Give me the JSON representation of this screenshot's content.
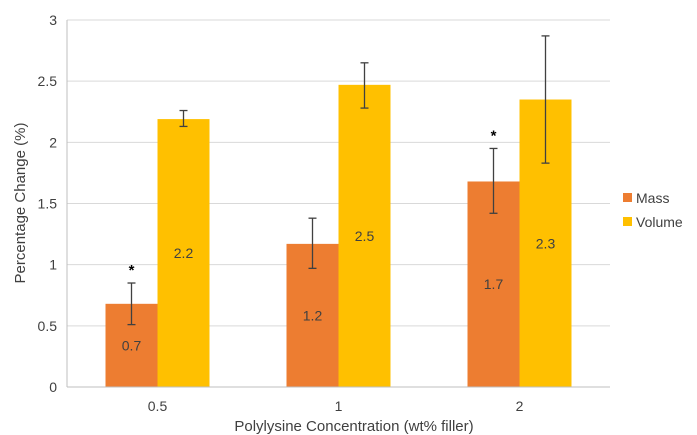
{
  "chart_data": {
    "type": "bar",
    "title": "",
    "xlabel": "Polylysine Concentration (wt% filler)",
    "ylabel": "Percentage Change  (%)",
    "categories": [
      "0.5",
      "1",
      "2"
    ],
    "ylim": [
      0,
      3
    ],
    "yticks": [
      "0",
      "0.5",
      "1",
      "1.5",
      "2",
      "2.5",
      "3"
    ],
    "grid": true,
    "legend_position": "right",
    "series": [
      {
        "name": "Mass",
        "color": "#ed7d31",
        "values": [
          0.68,
          1.17,
          1.68
        ],
        "labels": [
          "0.7",
          "1.2",
          "1.7"
        ],
        "error_low": [
          0.51,
          0.97,
          1.42
        ],
        "error_high": [
          0.85,
          1.38,
          1.95
        ],
        "significance": [
          "*",
          "",
          "*"
        ]
      },
      {
        "name": "Volume",
        "color": "#ffc000",
        "values": [
          2.19,
          2.47,
          2.35
        ],
        "labels": [
          "2.2",
          "2.5",
          "2.3"
        ],
        "error_low": [
          2.13,
          2.28,
          1.83
        ],
        "error_high": [
          2.26,
          2.65,
          2.87
        ],
        "significance": [
          "",
          "",
          ""
        ]
      }
    ]
  }
}
